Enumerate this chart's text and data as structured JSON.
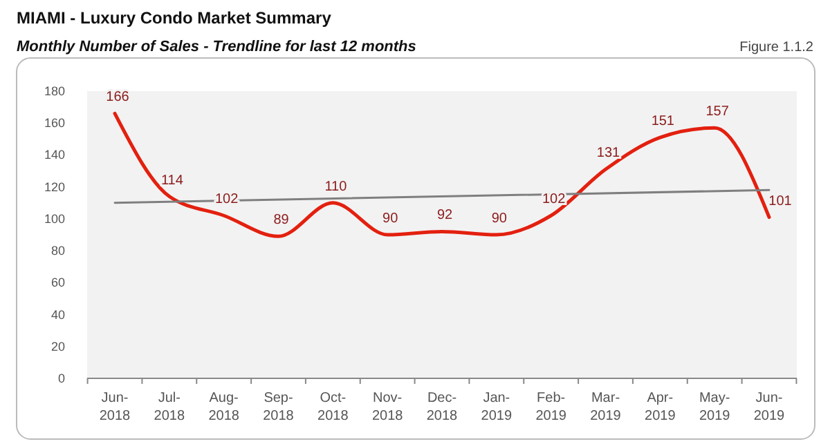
{
  "chart_data": {
    "type": "line",
    "title": "MIAMI - Luxury Condo Market Summary",
    "subtitle": "Monthly Number of Sales - Trendline for last 12 months",
    "annotations": [
      "Figure 1.1.2"
    ],
    "categories": [
      "Jun-2018",
      "Jul-2018",
      "Aug-2018",
      "Sep-2018",
      "Oct-2018",
      "Nov-2018",
      "Dec-2018",
      "Jan-2019",
      "Feb-2019",
      "Mar-2019",
      "Apr-2019",
      "May-2019",
      "Jun-2019"
    ],
    "series": [
      {
        "color": "#e3200f",
        "values": [
          166,
          114,
          102,
          89,
          110,
          90,
          92,
          90,
          102,
          131,
          151,
          157,
          101
        ],
        "data_labels": true
      },
      {
        "type": "line",
        "color": "#7f7f7f",
        "values": [
          110,
          null,
          null,
          null,
          null,
          null,
          null,
          null,
          null,
          null,
          null,
          null,
          118
        ]
      }
    ],
    "ylim": [
      0,
      180
    ],
    "yticks": [
      0,
      20,
      40,
      60,
      80,
      100,
      120,
      140,
      160,
      180
    ],
    "grid": false
  }
}
